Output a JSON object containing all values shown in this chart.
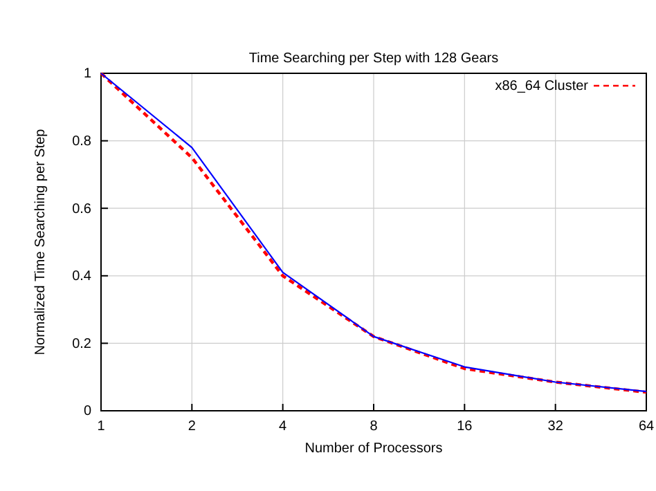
{
  "chart_data": {
    "type": "line",
    "title": "Time Searching per Step with 128 Gears",
    "xlabel": "Number of Processors",
    "ylabel": "Normalized Time Searching per Step",
    "x": [
      1,
      2,
      4,
      8,
      16,
      32,
      64
    ],
    "log": "x",
    "xlim": [
      1,
      64
    ],
    "xticks": [
      1,
      2,
      4,
      8,
      16,
      32,
      64
    ],
    "ylim": [
      0,
      1
    ],
    "yticks": [
      0,
      0.2,
      0.4,
      0.6,
      0.8,
      1
    ],
    "grid": true,
    "legend": "top right",
    "series": [
      {
        "name": "x86_64 Cluster",
        "color": "#ff0000",
        "line_style": "dashed",
        "values": [
          1,
          0.75,
          0.4,
          0.22,
          0.125,
          0.085,
          0.055
        ]
      },
      {
        "color": "#0000ff",
        "line_style": "solid",
        "values": [
          1,
          0.78,
          0.41,
          0.22,
          0.13,
          0.085,
          0.057
        ]
      }
    ]
  }
}
